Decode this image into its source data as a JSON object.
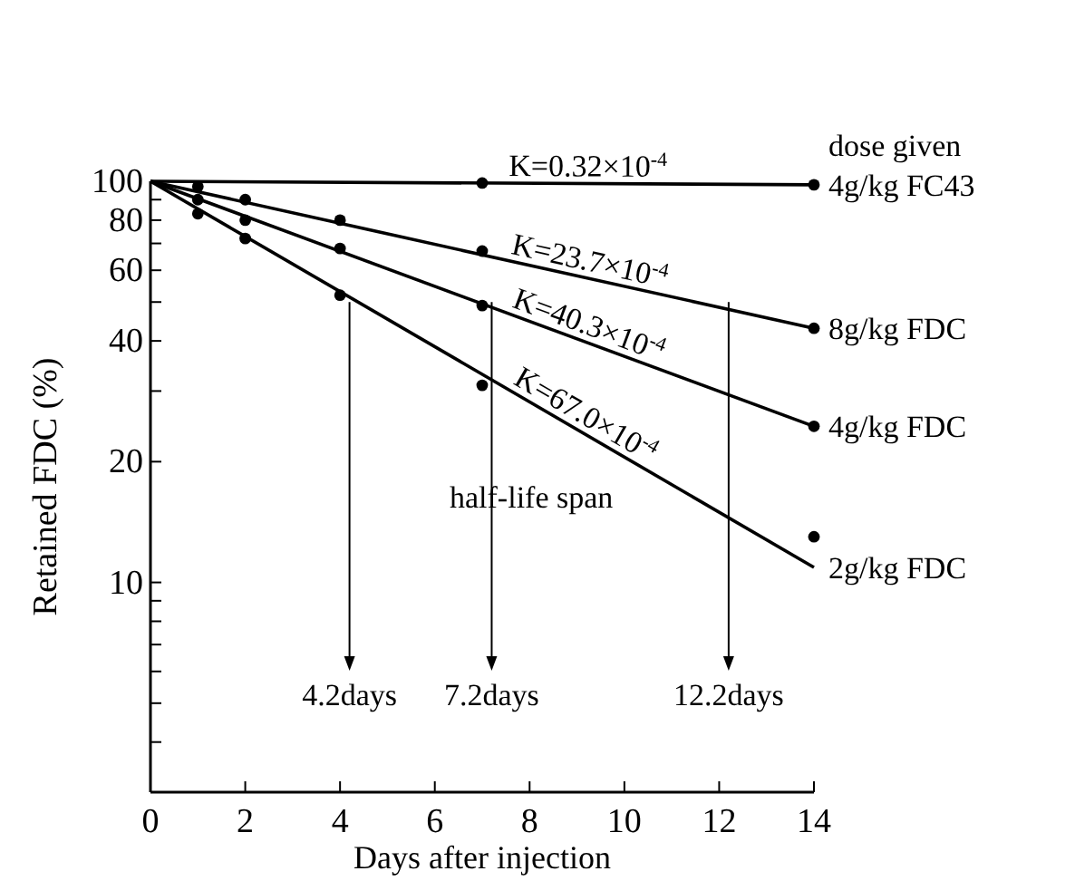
{
  "chart_data": {
    "type": "line",
    "xlabel": "Days after injection",
    "ylabel": "Retained FDC (%)",
    "xlim": [
      0,
      14
    ],
    "xticks": [
      0,
      2,
      4,
      6,
      8,
      10,
      12,
      14
    ],
    "ylim": [
      3,
      100
    ],
    "log": "y",
    "yticks": [
      100,
      {
        "value": 90,
        "label": null
      },
      80,
      {
        "value": 70,
        "label": null
      },
      60,
      {
        "value": 50,
        "label": null
      },
      40,
      {
        "value": 30,
        "label": null
      },
      20,
      10,
      {
        "value": 9,
        "label": null
      },
      {
        "value": 8,
        "label": null
      },
      {
        "value": 7,
        "label": null
      },
      {
        "value": 6,
        "label": null
      },
      {
        "value": 5,
        "label": null
      },
      {
        "value": 4,
        "label": null
      }
    ],
    "grid": false,
    "line_style": "solid",
    "series": [
      {
        "name": "4g/kg FC43",
        "color": "#000000",
        "marker": "none",
        "x": [
          0,
          14
        ],
        "values": [
          100,
          98
        ]
      },
      {
        "name": "8g/kg FDC",
        "color": "#000000",
        "marker": "none",
        "x": [
          0,
          14
        ],
        "values": [
          100,
          43
        ]
      },
      {
        "name": "4g/kg FDC",
        "color": "#000000",
        "marker": "none",
        "x": [
          0,
          14
        ],
        "values": [
          100,
          24.5
        ]
      },
      {
        "name": "2g/kg FDC",
        "color": "#000000",
        "marker": "none",
        "x": [
          0,
          14
        ],
        "values": [
          100,
          10.9
        ]
      },
      {
        "type": "scatter",
        "color": "#000000",
        "marker": "circle",
        "x": [
          7,
          14
        ],
        "values": [
          99,
          98
        ]
      },
      {
        "type": "scatter",
        "color": "#000000",
        "marker": "circle",
        "x": [
          1,
          2,
          4,
          7,
          14
        ],
        "values": [
          97,
          90,
          80,
          67,
          43
        ]
      },
      {
        "type": "scatter",
        "color": "#000000",
        "marker": "circle",
        "x": [
          1,
          2,
          4,
          7,
          14
        ],
        "values": [
          90,
          80,
          68,
          49,
          24.5
        ]
      },
      {
        "type": "scatter",
        "color": "#000000",
        "marker": "circle",
        "x": [
          1,
          2,
          4,
          7,
          14
        ],
        "values": [
          83,
          72,
          52,
          31,
          13
        ]
      }
    ],
    "annotations": [
      "K=0.32×10$^{-4}$",
      "K=23.7×10$^{-4}$",
      "K=40.3×10$^{-4}$",
      "K=67.0×10$^{-4}$",
      "dose given",
      "half-life span",
      {
        "text": "4.2days",
        "x": 4.2,
        "y": 50
      },
      {
        "text": "7.2days",
        "x": 7.2,
        "y": 50
      },
      {
        "text": "12.2days",
        "x": 12.2,
        "y": 50
      }
    ]
  }
}
